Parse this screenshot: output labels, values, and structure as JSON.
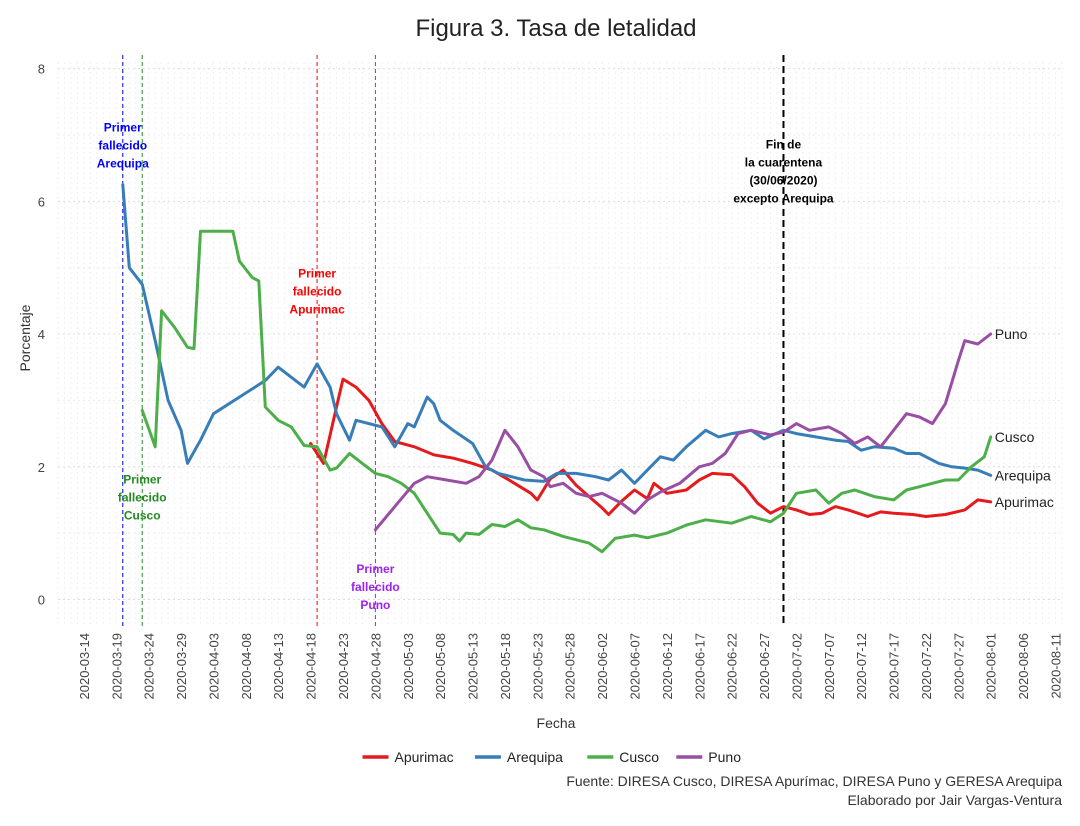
{
  "chart_data": {
    "type": "line",
    "title": "Figura 3. Tasa de letalidad",
    "xlabel": "Fecha",
    "ylabel": "Porcentaje",
    "xlim": [
      "2020-03-10",
      "2020-08-12"
    ],
    "ylim": [
      -0.4,
      8.1
    ],
    "y_ticks": [
      0,
      2,
      4,
      6,
      8
    ],
    "x_ticks": [
      "2020-03-14",
      "2020-03-19",
      "2020-03-24",
      "2020-03-29",
      "2020-04-03",
      "2020-04-08",
      "2020-04-13",
      "2020-04-18",
      "2020-04-23",
      "2020-04-28",
      "2020-05-03",
      "2020-05-08",
      "2020-05-13",
      "2020-05-18",
      "2020-05-23",
      "2020-05-28",
      "2020-06-02",
      "2020-06-07",
      "2020-06-12",
      "2020-06-17",
      "2020-06-22",
      "2020-06-27",
      "2020-07-02",
      "2020-07-07",
      "2020-07-12",
      "2020-07-17",
      "2020-07-22",
      "2020-07-27",
      "2020-08-01",
      "2020-08-06",
      "2020-08-11"
    ],
    "grid": true,
    "legend_position": "bottom",
    "series": [
      {
        "name": "Apurimac",
        "color": "#e41a1c",
        "end_label": "Apurimac",
        "points": [
          [
            "2020-04-18",
            2.35
          ],
          [
            "2020-04-20",
            2.05
          ],
          [
            "2020-04-22",
            2.9
          ],
          [
            "2020-04-23",
            3.32
          ],
          [
            "2020-04-25",
            3.2
          ],
          [
            "2020-04-27",
            3.0
          ],
          [
            "2020-04-29",
            2.65
          ],
          [
            "2020-05-01",
            2.38
          ],
          [
            "2020-05-04",
            2.3
          ],
          [
            "2020-05-07",
            2.18
          ],
          [
            "2020-05-10",
            2.13
          ],
          [
            "2020-05-13",
            2.05
          ],
          [
            "2020-05-16",
            1.95
          ],
          [
            "2020-05-19",
            1.78
          ],
          [
            "2020-05-22",
            1.6
          ],
          [
            "2020-05-23",
            1.5
          ],
          [
            "2020-05-25",
            1.82
          ],
          [
            "2020-05-27",
            1.95
          ],
          [
            "2020-05-29",
            1.72
          ],
          [
            "2020-05-31",
            1.55
          ],
          [
            "2020-06-02",
            1.38
          ],
          [
            "2020-06-03",
            1.28
          ],
          [
            "2020-06-05",
            1.48
          ],
          [
            "2020-06-07",
            1.65
          ],
          [
            "2020-06-09",
            1.52
          ],
          [
            "2020-06-10",
            1.75
          ],
          [
            "2020-06-12",
            1.6
          ],
          [
            "2020-06-15",
            1.65
          ],
          [
            "2020-06-17",
            1.8
          ],
          [
            "2020-06-19",
            1.9
          ],
          [
            "2020-06-22",
            1.88
          ],
          [
            "2020-06-24",
            1.7
          ],
          [
            "2020-06-26",
            1.45
          ],
          [
            "2020-06-28",
            1.3
          ],
          [
            "2020-06-30",
            1.4
          ],
          [
            "2020-07-02",
            1.35
          ],
          [
            "2020-07-04",
            1.28
          ],
          [
            "2020-07-06",
            1.3
          ],
          [
            "2020-07-08",
            1.4
          ],
          [
            "2020-07-10",
            1.35
          ],
          [
            "2020-07-13",
            1.25
          ],
          [
            "2020-07-15",
            1.32
          ],
          [
            "2020-07-17",
            1.3
          ],
          [
            "2020-07-20",
            1.28
          ],
          [
            "2020-07-22",
            1.25
          ],
          [
            "2020-07-25",
            1.28
          ],
          [
            "2020-07-28",
            1.35
          ],
          [
            "2020-07-30",
            1.5
          ],
          [
            "2020-08-01",
            1.47
          ]
        ]
      },
      {
        "name": "Arequipa",
        "color": "#377eb8",
        "end_label": "Arequipa",
        "points": [
          [
            "2020-03-20",
            6.25
          ],
          [
            "2020-03-21",
            5.0
          ],
          [
            "2020-03-23",
            4.75
          ],
          [
            "2020-03-25",
            3.9
          ],
          [
            "2020-03-27",
            3.0
          ],
          [
            "2020-03-29",
            2.55
          ],
          [
            "2020-03-30",
            2.05
          ],
          [
            "2020-04-01",
            2.4
          ],
          [
            "2020-04-03",
            2.8
          ],
          [
            "2020-04-07",
            3.05
          ],
          [
            "2020-04-11",
            3.3
          ],
          [
            "2020-04-13",
            3.5
          ],
          [
            "2020-04-15",
            3.35
          ],
          [
            "2020-04-17",
            3.2
          ],
          [
            "2020-04-19",
            3.55
          ],
          [
            "2020-04-21",
            3.2
          ],
          [
            "2020-04-22",
            2.8
          ],
          [
            "2020-04-24",
            2.4
          ],
          [
            "2020-04-25",
            2.7
          ],
          [
            "2020-04-29",
            2.6
          ],
          [
            "2020-05-01",
            2.3
          ],
          [
            "2020-05-03",
            2.65
          ],
          [
            "2020-05-04",
            2.6
          ],
          [
            "2020-05-06",
            3.05
          ],
          [
            "2020-05-07",
            2.95
          ],
          [
            "2020-05-08",
            2.7
          ],
          [
            "2020-05-10",
            2.55
          ],
          [
            "2020-05-13",
            2.35
          ],
          [
            "2020-05-15",
            2.0
          ],
          [
            "2020-05-17",
            1.9
          ],
          [
            "2020-05-19",
            1.85
          ],
          [
            "2020-05-21",
            1.8
          ],
          [
            "2020-05-24",
            1.78
          ],
          [
            "2020-05-26",
            1.9
          ],
          [
            "2020-05-29",
            1.9
          ],
          [
            "2020-06-01",
            1.85
          ],
          [
            "2020-06-03",
            1.8
          ],
          [
            "2020-06-05",
            1.95
          ],
          [
            "2020-06-07",
            1.75
          ],
          [
            "2020-06-09",
            1.95
          ],
          [
            "2020-06-11",
            2.15
          ],
          [
            "2020-06-13",
            2.1
          ],
          [
            "2020-06-15",
            2.3
          ],
          [
            "2020-06-18",
            2.55
          ],
          [
            "2020-06-20",
            2.45
          ],
          [
            "2020-06-22",
            2.5
          ],
          [
            "2020-06-25",
            2.55
          ],
          [
            "2020-06-27",
            2.42
          ],
          [
            "2020-06-30",
            2.55
          ],
          [
            "2020-07-02",
            2.5
          ],
          [
            "2020-07-05",
            2.45
          ],
          [
            "2020-07-08",
            2.4
          ],
          [
            "2020-07-10",
            2.38
          ],
          [
            "2020-07-12",
            2.25
          ],
          [
            "2020-07-14",
            2.3
          ],
          [
            "2020-07-17",
            2.28
          ],
          [
            "2020-07-19",
            2.2
          ],
          [
            "2020-07-21",
            2.2
          ],
          [
            "2020-07-24",
            2.05
          ],
          [
            "2020-07-26",
            2.0
          ],
          [
            "2020-07-28",
            1.98
          ],
          [
            "2020-07-30",
            1.95
          ],
          [
            "2020-08-01",
            1.87
          ]
        ]
      },
      {
        "name": "Cusco",
        "color": "#4daf4a",
        "end_label": "Cusco",
        "points": [
          [
            "2020-03-23",
            2.85
          ],
          [
            "2020-03-25",
            2.3
          ],
          [
            "2020-03-26",
            4.35
          ],
          [
            "2020-03-28",
            4.1
          ],
          [
            "2020-03-30",
            3.8
          ],
          [
            "2020-03-31",
            3.78
          ],
          [
            "2020-04-01",
            5.55
          ],
          [
            "2020-04-06",
            5.55
          ],
          [
            "2020-04-07",
            5.1
          ],
          [
            "2020-04-09",
            4.85
          ],
          [
            "2020-04-10",
            4.8
          ],
          [
            "2020-04-11",
            2.9
          ],
          [
            "2020-04-13",
            2.7
          ],
          [
            "2020-04-15",
            2.6
          ],
          [
            "2020-04-17",
            2.32
          ],
          [
            "2020-04-19",
            2.3
          ],
          [
            "2020-04-21",
            1.95
          ],
          [
            "2020-04-22",
            1.98
          ],
          [
            "2020-04-24",
            2.2
          ],
          [
            "2020-04-26",
            2.05
          ],
          [
            "2020-04-28",
            1.9
          ],
          [
            "2020-04-30",
            1.85
          ],
          [
            "2020-05-02",
            1.75
          ],
          [
            "2020-05-04",
            1.6
          ],
          [
            "2020-05-06",
            1.3
          ],
          [
            "2020-05-08",
            1.0
          ],
          [
            "2020-05-10",
            0.98
          ],
          [
            "2020-05-11",
            0.88
          ],
          [
            "2020-05-12",
            1.0
          ],
          [
            "2020-05-14",
            0.98
          ],
          [
            "2020-05-16",
            1.13
          ],
          [
            "2020-05-18",
            1.1
          ],
          [
            "2020-05-20",
            1.2
          ],
          [
            "2020-05-22",
            1.08
          ],
          [
            "2020-05-24",
            1.05
          ],
          [
            "2020-05-27",
            0.95
          ],
          [
            "2020-05-31",
            0.85
          ],
          [
            "2020-06-02",
            0.72
          ],
          [
            "2020-06-04",
            0.92
          ],
          [
            "2020-06-07",
            0.97
          ],
          [
            "2020-06-09",
            0.93
          ],
          [
            "2020-06-12",
            1.0
          ],
          [
            "2020-06-15",
            1.12
          ],
          [
            "2020-06-18",
            1.2
          ],
          [
            "2020-06-22",
            1.15
          ],
          [
            "2020-06-25",
            1.25
          ],
          [
            "2020-06-28",
            1.17
          ],
          [
            "2020-06-30",
            1.3
          ],
          [
            "2020-07-02",
            1.6
          ],
          [
            "2020-07-05",
            1.65
          ],
          [
            "2020-07-07",
            1.45
          ],
          [
            "2020-07-09",
            1.6
          ],
          [
            "2020-07-11",
            1.65
          ],
          [
            "2020-07-14",
            1.55
          ],
          [
            "2020-07-17",
            1.5
          ],
          [
            "2020-07-19",
            1.65
          ],
          [
            "2020-07-21",
            1.7
          ],
          [
            "2020-07-23",
            1.75
          ],
          [
            "2020-07-25",
            1.8
          ],
          [
            "2020-07-27",
            1.8
          ],
          [
            "2020-07-29",
            2.0
          ],
          [
            "2020-07-31",
            2.15
          ],
          [
            "2020-08-01",
            2.45
          ]
        ]
      },
      {
        "name": "Puno",
        "color": "#984ea3",
        "end_label": "Puno",
        "points": [
          [
            "2020-04-28",
            1.05
          ],
          [
            "2020-05-01",
            1.4
          ],
          [
            "2020-05-04",
            1.75
          ],
          [
            "2020-05-06",
            1.85
          ],
          [
            "2020-05-09",
            1.8
          ],
          [
            "2020-05-12",
            1.75
          ],
          [
            "2020-05-14",
            1.85
          ],
          [
            "2020-05-16",
            2.1
          ],
          [
            "2020-05-18",
            2.55
          ],
          [
            "2020-05-20",
            2.3
          ],
          [
            "2020-05-22",
            1.95
          ],
          [
            "2020-05-24",
            1.85
          ],
          [
            "2020-05-25",
            1.7
          ],
          [
            "2020-05-27",
            1.75
          ],
          [
            "2020-05-29",
            1.6
          ],
          [
            "2020-05-31",
            1.55
          ],
          [
            "2020-06-02",
            1.6
          ],
          [
            "2020-06-05",
            1.45
          ],
          [
            "2020-06-07",
            1.3
          ],
          [
            "2020-06-09",
            1.5
          ],
          [
            "2020-06-11",
            1.62
          ],
          [
            "2020-06-14",
            1.75
          ],
          [
            "2020-06-17",
            2.0
          ],
          [
            "2020-06-19",
            2.05
          ],
          [
            "2020-06-21",
            2.2
          ],
          [
            "2020-06-23",
            2.5
          ],
          [
            "2020-06-25",
            2.55
          ],
          [
            "2020-06-28",
            2.48
          ],
          [
            "2020-06-30",
            2.52
          ],
          [
            "2020-07-02",
            2.65
          ],
          [
            "2020-07-04",
            2.55
          ],
          [
            "2020-07-07",
            2.6
          ],
          [
            "2020-07-09",
            2.5
          ],
          [
            "2020-07-11",
            2.35
          ],
          [
            "2020-07-13",
            2.45
          ],
          [
            "2020-07-15",
            2.3
          ],
          [
            "2020-07-17",
            2.55
          ],
          [
            "2020-07-19",
            2.8
          ],
          [
            "2020-07-21",
            2.75
          ],
          [
            "2020-07-23",
            2.65
          ],
          [
            "2020-07-25",
            2.95
          ],
          [
            "2020-07-27",
            3.6
          ],
          [
            "2020-07-28",
            3.9
          ],
          [
            "2020-07-30",
            3.85
          ],
          [
            "2020-08-01",
            4.0
          ]
        ]
      }
    ],
    "vlines": [
      {
        "date": "2020-03-20",
        "color": "#0000ff",
        "style": "dashed"
      },
      {
        "date": "2020-03-23",
        "color": "#228b22",
        "style": "dashed"
      },
      {
        "date": "2020-04-19",
        "color": "#ff0000",
        "style": "dashed"
      },
      {
        "date": "2020-04-28",
        "color": "#a020f0",
        "style": "dashed"
      },
      {
        "date": "2020-06-30",
        "color": "#000000",
        "style": "dashed-bold"
      }
    ],
    "annotations": [
      {
        "text": [
          "Primer",
          "fallecido",
          "Arequipa"
        ],
        "color": "#0000ff",
        "x": "2020-03-20",
        "y": 7.05
      },
      {
        "text": [
          "Primer",
          "fallecido",
          "Cusco"
        ],
        "color": "#228b22",
        "x": "2020-03-23",
        "y": 1.75
      },
      {
        "text": [
          "Primer",
          "fallecido",
          "Apurimac"
        ],
        "color": "#ff0000",
        "x": "2020-04-19",
        "y": 4.85
      },
      {
        "text": [
          "Primer",
          "fallecido",
          "Puno"
        ],
        "color": "#a020f0",
        "x": "2020-04-28",
        "y": 0.4
      },
      {
        "text": [
          "Fin de",
          "la cuarentena",
          "(30/06/2020)",
          "excepto Arequipa"
        ],
        "color": "#000000",
        "x": "2020-06-30",
        "y": 6.8
      }
    ],
    "caption": [
      "Fuente: DIRESA Cusco, DIRESA Apurímac, DIRESA Puno y GERESA Arequipa",
      "Elaborado por Jair Vargas-Ventura"
    ]
  }
}
